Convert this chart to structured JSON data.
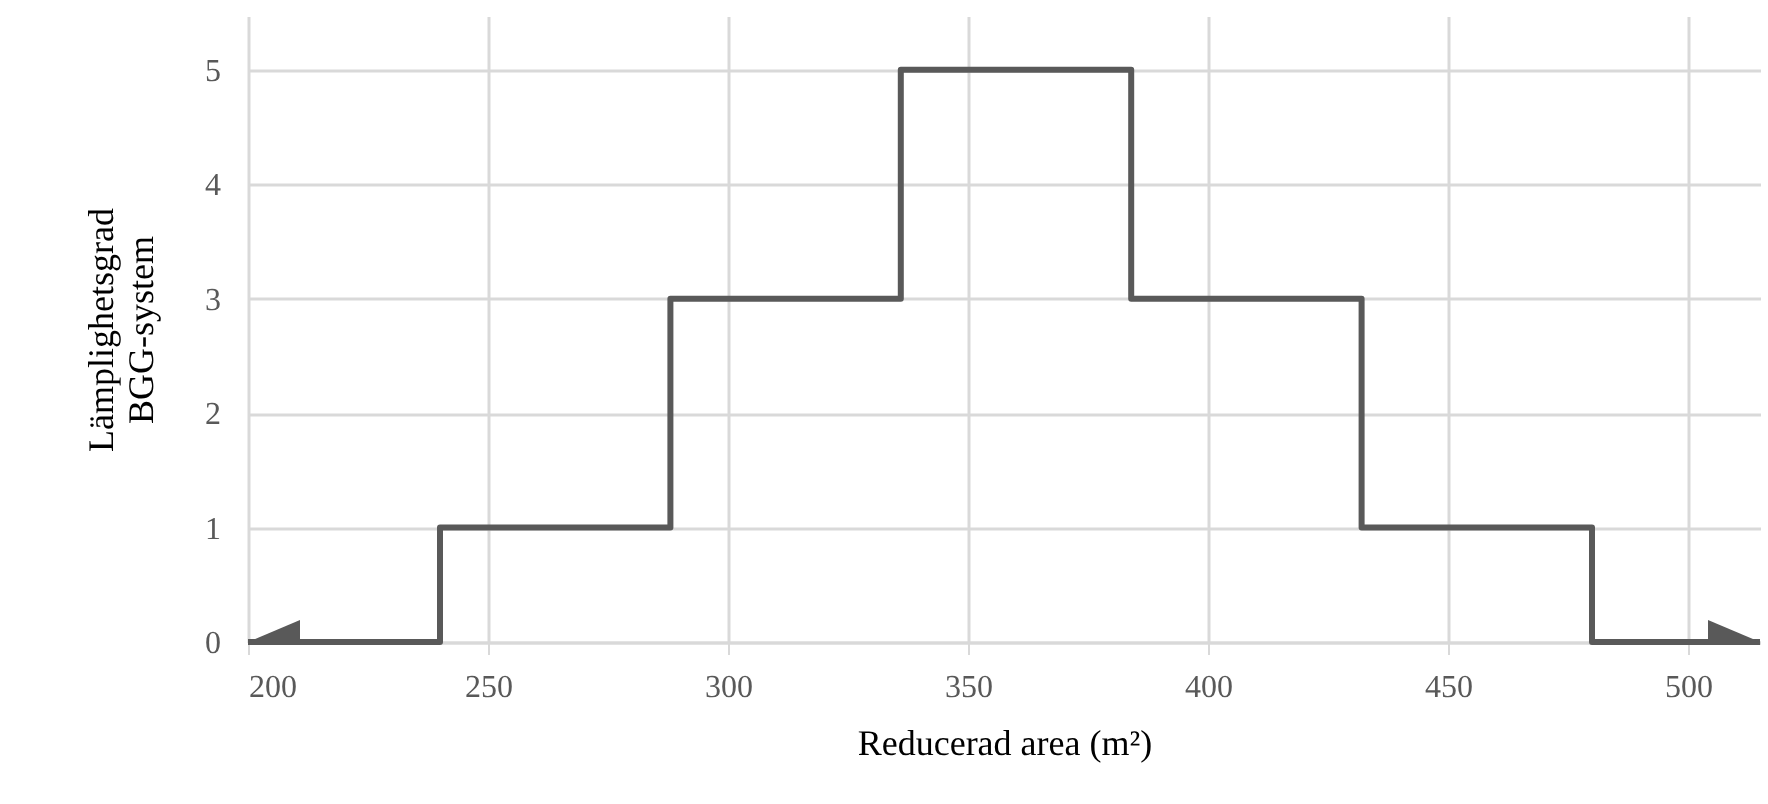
{
  "chart_data": {
    "type": "step",
    "xlabel": "Reducerad area (m²)",
    "ylabel": "Lämplighetsgrad\nBGG-system",
    "x": [
      200,
      240,
      288,
      336,
      384,
      432,
      480,
      515
    ],
    "series": [
      {
        "color": "#595959",
        "values": [
          0,
          1,
          3,
          5,
          3,
          1,
          0,
          0
        ]
      }
    ],
    "xlim": [
      200,
      515
    ],
    "xticks": [
      200,
      250,
      300,
      350,
      400,
      450,
      500
    ],
    "ylim": [
      0,
      5.47
    ],
    "yticks": [
      0,
      1,
      2,
      3,
      4,
      5
    ],
    "grid": true,
    "marker": "none",
    "line_style": "solid"
  }
}
